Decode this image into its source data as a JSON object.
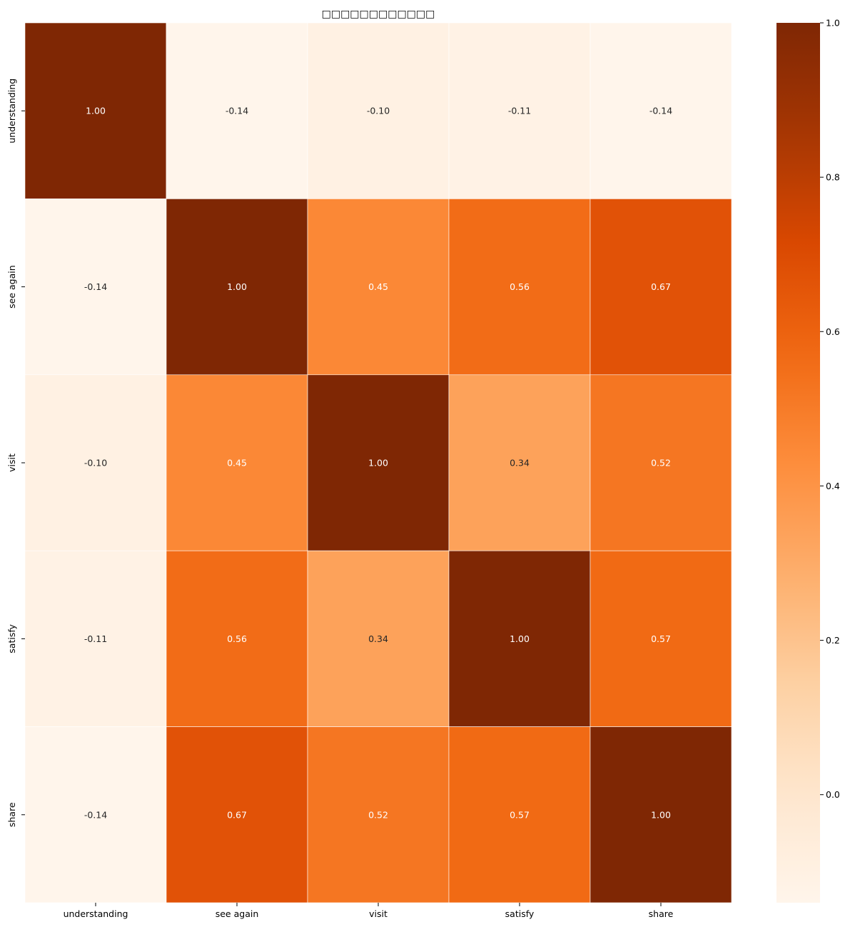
{
  "chart_data": {
    "type": "heatmap",
    "title": "□□□□□□□□□□□□",
    "x_categories": [
      "understanding",
      "see again",
      "visit",
      "satisfy",
      "share"
    ],
    "y_categories": [
      "understanding",
      "see again",
      "visit",
      "satisfy",
      "share"
    ],
    "values": [
      [
        1.0,
        -0.14,
        -0.1,
        -0.11,
        -0.14
      ],
      [
        -0.14,
        1.0,
        0.45,
        0.56,
        0.67
      ],
      [
        -0.1,
        0.45,
        1.0,
        0.34,
        0.52
      ],
      [
        -0.11,
        0.56,
        0.34,
        1.0,
        0.57
      ],
      [
        -0.14,
        0.67,
        0.52,
        0.57,
        1.0
      ]
    ],
    "value_format": "0.00",
    "colormap": "Oranges",
    "vmin": -0.14,
    "vmax": 1.0,
    "colorbar": {
      "ticks": [
        0.0,
        0.2,
        0.4,
        0.6,
        0.8,
        1.0
      ],
      "tick_labels": [
        "0.0",
        "0.2",
        "0.4",
        "0.6",
        "0.8",
        "1.0"
      ],
      "placement": "right"
    },
    "cell_border_color": "#ffffff",
    "text_color_dark": "#262626",
    "text_color_light": "#ffffff"
  }
}
